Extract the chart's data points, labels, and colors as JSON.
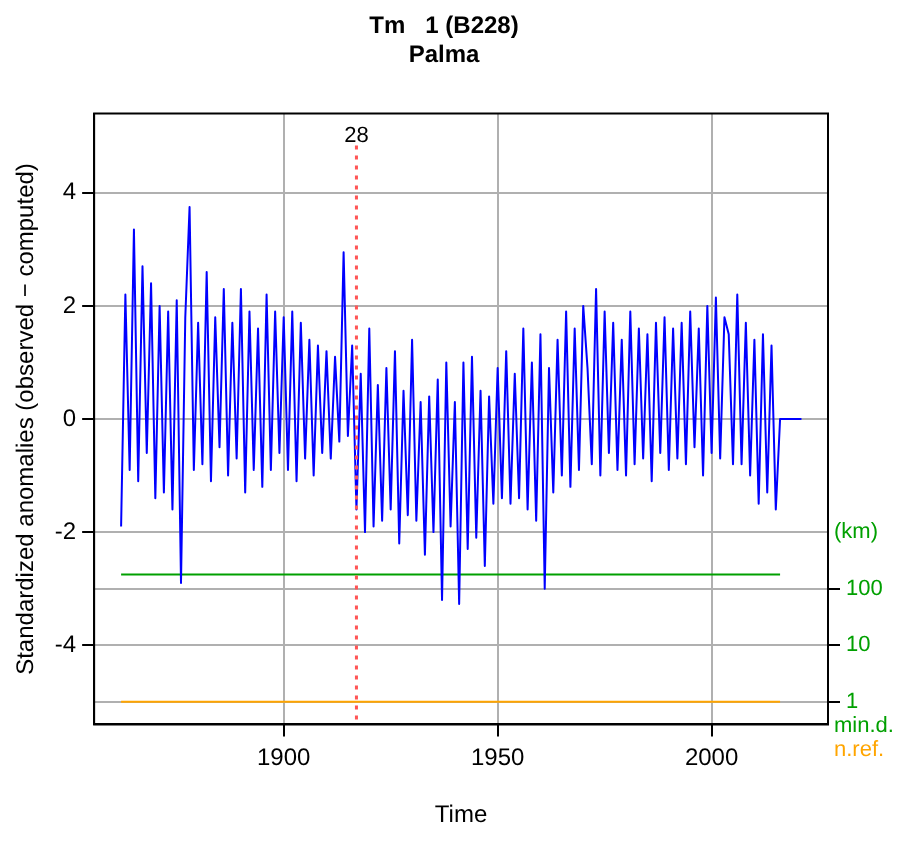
{
  "chart_data": {
    "type": "line",
    "title": "Tm   1 (B228)",
    "subtitle": "Palma",
    "xlabel": "Time",
    "ylabel": "Standardized anomalies (observed − computed)",
    "y2label": "(km)",
    "xlim": [
      1855.7,
      2027.2
    ],
    "xticks": [
      1900,
      1950,
      2000
    ],
    "ylim": [
      -5.4,
      5.4
    ],
    "yticks": [
      -4,
      -2,
      0,
      2,
      4
    ],
    "y2lim": [
      0.398,
      25100000000
    ],
    "y2ticks": [
      1,
      10,
      100
    ],
    "log": "y2",
    "grid": true,
    "legend": false,
    "series": [
      {
        "color": "#0000ff",
        "x": [
          1862,
          1863,
          1864,
          1865,
          1866,
          1867,
          1868,
          1869,
          1870,
          1871,
          1872,
          1873,
          1874,
          1875,
          1876,
          1877,
          1878,
          1879,
          1880,
          1881,
          1882,
          1883,
          1884,
          1885,
          1886,
          1887,
          1888,
          1889,
          1890,
          1891,
          1892,
          1893,
          1894,
          1895,
          1896,
          1897,
          1898,
          1899,
          1900,
          1901,
          1902,
          1903,
          1904,
          1905,
          1906,
          1907,
          1908,
          1909,
          1910,
          1911,
          1912,
          1913,
          1914,
          1915,
          1916,
          1917,
          1918,
          1919,
          1920,
          1921,
          1922,
          1923,
          1924,
          1925,
          1926,
          1927,
          1928,
          1929,
          1930,
          1931,
          1932,
          1933,
          1934,
          1935,
          1936,
          1937,
          1938,
          1939,
          1940,
          1941,
          1942,
          1943,
          1944,
          1945,
          1946,
          1947,
          1948,
          1949,
          1950,
          1951,
          1952,
          1953,
          1954,
          1955,
          1956,
          1957,
          1958,
          1959,
          1960,
          1961,
          1962,
          1963,
          1964,
          1965,
          1966,
          1967,
          1968,
          1969,
          1970,
          1971,
          1972,
          1973,
          1974,
          1975,
          1976,
          1977,
          1978,
          1979,
          1980,
          1981,
          1982,
          1983,
          1984,
          1985,
          1986,
          1987,
          1988,
          1989,
          1990,
          1991,
          1992,
          1993,
          1994,
          1995,
          1996,
          1997,
          1998,
          1999,
          2000,
          2001,
          2002,
          2003,
          2004,
          2005,
          2006,
          2007,
          2008,
          2009,
          2010,
          2011,
          2012,
          2013,
          2014,
          2015,
          2016,
          2021
        ],
        "values": [
          -1.9,
          2.2,
          -0.9,
          3.35,
          -1.1,
          2.7,
          -0.6,
          2.4,
          -1.4,
          2.0,
          -1.3,
          1.9,
          -1.6,
          2.1,
          -2.9,
          1.8,
          3.75,
          -0.9,
          1.7,
          -0.8,
          2.6,
          -1.1,
          1.8,
          -0.5,
          2.3,
          -1.0,
          1.7,
          -0.7,
          2.3,
          -1.3,
          1.9,
          -0.9,
          1.6,
          -1.2,
          2.2,
          -0.9,
          1.9,
          -0.6,
          1.8,
          -0.9,
          1.9,
          -1.1,
          1.7,
          -0.7,
          1.4,
          -1.0,
          1.3,
          -0.6,
          1.2,
          -0.7,
          1.1,
          -0.4,
          2.95,
          -0.3,
          1.3,
          -1.6,
          0.8,
          -2.0,
          1.6,
          -1.9,
          0.6,
          -1.8,
          0.9,
          -1.6,
          1.2,
          -2.2,
          0.5,
          -1.7,
          1.4,
          -1.8,
          0.3,
          -2.4,
          0.4,
          -2.0,
          0.7,
          -3.2,
          1.0,
          -1.9,
          0.3,
          -3.27,
          1.0,
          -2.3,
          1.1,
          -2.1,
          0.5,
          -2.6,
          0.4,
          -1.5,
          0.9,
          -1.4,
          1.2,
          -1.5,
          0.8,
          -1.4,
          1.6,
          -1.6,
          1.0,
          -1.8,
          1.5,
          -3.0,
          0.9,
          -1.3,
          1.4,
          -1.0,
          1.9,
          -1.2,
          1.6,
          -0.9,
          2.0,
          0.9,
          -0.8,
          2.3,
          -1.0,
          1.9,
          -0.6,
          1.7,
          -0.9,
          1.4,
          -1.0,
          1.9,
          -0.8,
          1.6,
          -0.7,
          1.5,
          -1.1,
          1.7,
          -0.6,
          1.8,
          -0.9,
          1.6,
          -0.7,
          1.7,
          -0.8,
          1.9,
          -0.5,
          1.6,
          -1.0,
          2.0,
          -0.6,
          2.15,
          -0.7,
          1.8,
          1.5,
          -0.8,
          2.2,
          -0.8,
          1.7,
          -1.0,
          1.4,
          -1.5,
          1.5,
          -1.3,
          1.3,
          -1.6,
          0,
          0
        ]
      },
      {
        "color": "#00a000",
        "x": [
          1862,
          2016
        ],
        "values": [
          -2.75,
          -2.75
        ]
      },
      {
        "color": "#ffa500",
        "x": [
          1862,
          2016
        ],
        "values": [
          -5,
          -5
        ]
      }
    ],
    "ref_lines": [
      {
        "axis": "x",
        "value": 1917,
        "color": "#ff5555",
        "line_style": "dotted"
      }
    ],
    "annotations": [
      "min.d.",
      "n.ref.",
      {
        "text": "28",
        "x": 1917,
        "y": 5
      }
    ]
  }
}
